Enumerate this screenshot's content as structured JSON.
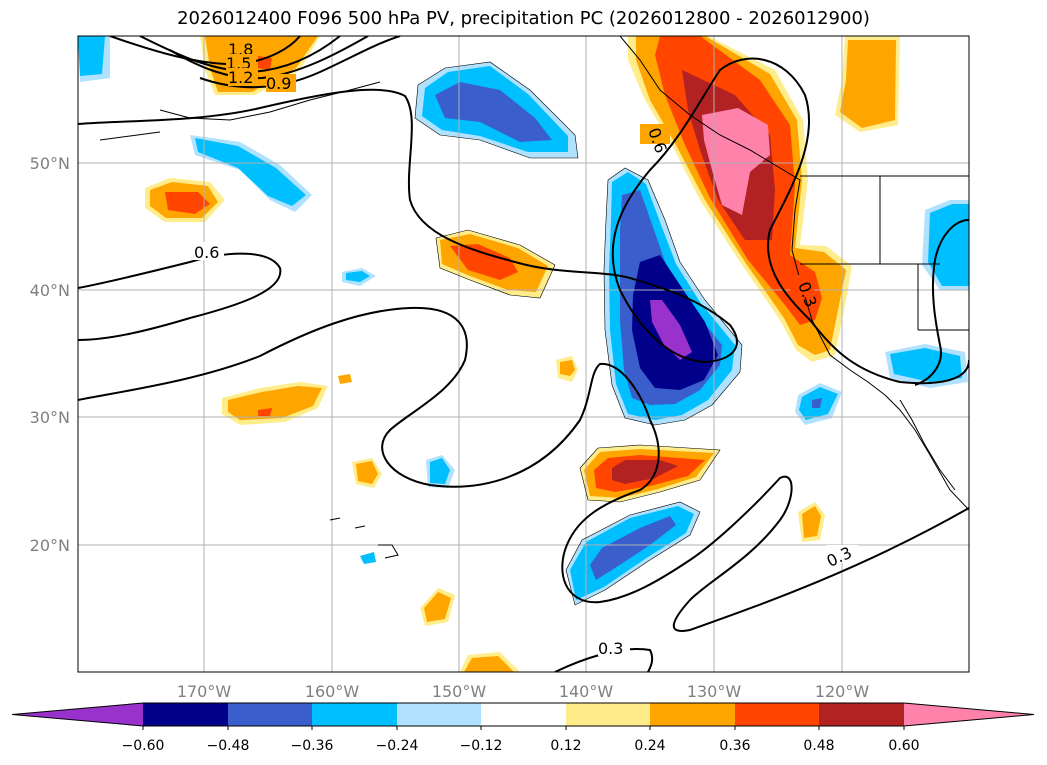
{
  "title": "2026012400 F096 500 hPa PV, precipitation PC (2026012800 - 2026012900)",
  "map": {
    "lat_ticks": [
      "50°N",
      "40°N",
      "30°N",
      "20°N"
    ],
    "lon_ticks": [
      "170°W",
      "160°W",
      "150°W",
      "140°W",
      "130°W",
      "120°W"
    ]
  },
  "contour_labels": [
    "1.8",
    "1.5",
    "1.2",
    "0.9",
    "0.6",
    "0.6",
    "0.3",
    "0.3",
    "0.3"
  ],
  "colorbar": {
    "tick_labels": [
      "−0.60",
      "−0.48",
      "−0.36",
      "−0.24",
      "−0.12",
      "0.12",
      "0.24",
      "0.36",
      "0.48",
      "0.60"
    ],
    "colors": [
      "#9932cc",
      "#00008b",
      "#3a5fcd",
      "#00bfff",
      "#b0e2ff",
      "#ffffff",
      "#ffec8b",
      "#ffa500",
      "#ff4500",
      "#b22222",
      "#ff82ab"
    ]
  }
}
